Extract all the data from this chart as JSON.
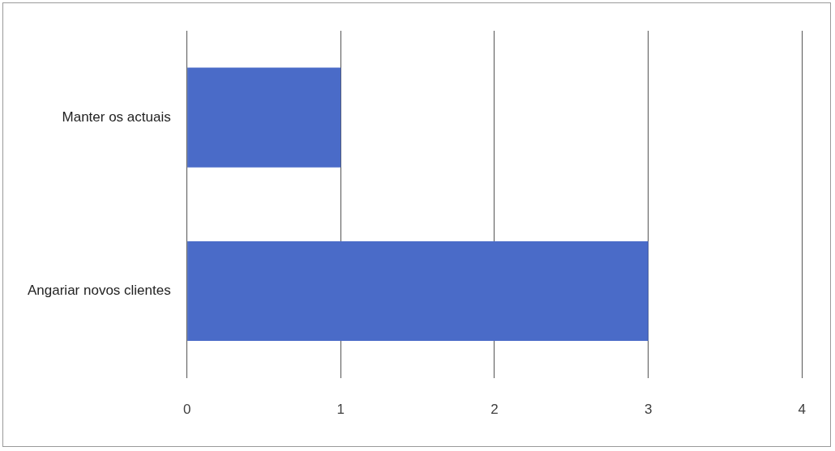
{
  "chart_data": {
    "type": "bar",
    "orientation": "horizontal",
    "categories": [
      "Manter os actuais",
      "Angariar novos clientes"
    ],
    "values": [
      1,
      3
    ],
    "color": "#4a6bc8",
    "xlim": [
      0,
      4
    ],
    "xticks": [
      0,
      1,
      2,
      3,
      4
    ],
    "grid": "x",
    "legend": false
  }
}
